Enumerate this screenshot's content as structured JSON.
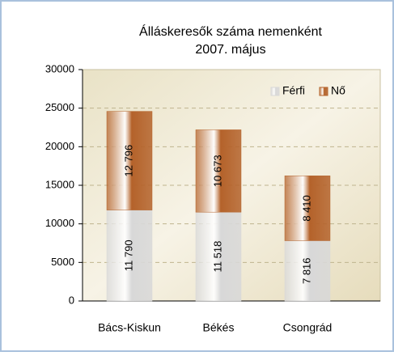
{
  "chart_data": {
    "type": "stacked_bar",
    "title": "Álláskeresők száma nemenként",
    "subtitle": "2007. május",
    "categories": [
      "Bács-Kiskun",
      "Békés",
      "Csongrád"
    ],
    "series": [
      {
        "name": "Férfi",
        "color": "#d8d8d8",
        "values": [
          11790,
          11518,
          7816
        ],
        "value_labels": [
          "11 790",
          "11 518",
          "7 816"
        ]
      },
      {
        "name": "Nő",
        "color": "#b4622a",
        "values": [
          12796,
          10673,
          8410
        ],
        "value_labels": [
          "12 796",
          "10 673",
          "8 410"
        ]
      }
    ],
    "ylim": [
      0,
      30000
    ],
    "yticks": [
      0,
      5000,
      10000,
      15000,
      20000,
      25000,
      30000
    ],
    "grid": true,
    "legend": "top-right"
  }
}
